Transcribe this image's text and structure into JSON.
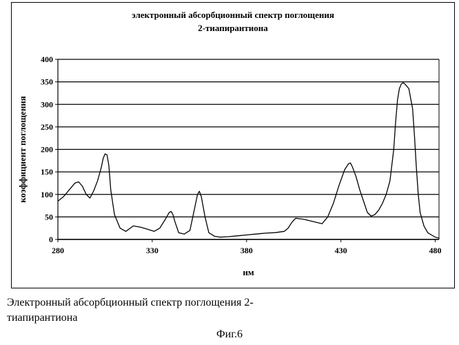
{
  "caption": {
    "line1": "Электронный   абсорбционный   спектр   поглощения   2-",
    "line2": "тиапирантиона",
    "figure_label": "Фиг.6"
  },
  "chart_data": {
    "type": "line",
    "title": [
      "электронный абсорбционный спектр поглощения",
      "2-тиапирантиона"
    ],
    "xlabel": "нм",
    "ylabel": "коэффициент поглощения",
    "xlim": [
      280,
      482
    ],
    "ylim": [
      0,
      400
    ],
    "xticks": [
      280,
      330,
      380,
      430,
      480
    ],
    "yticks": [
      0,
      50,
      100,
      150,
      200,
      250,
      300,
      350,
      400
    ],
    "grid": "horizontal",
    "legend": "none",
    "line_color": "#000000",
    "series": [
      {
        "x": [
          280,
          283,
          286,
          289,
          291,
          293,
          295,
          297,
          299,
          301,
          303,
          304,
          305,
          306,
          307,
          308,
          310,
          313,
          316,
          320,
          324,
          328,
          331,
          334,
          337,
          339,
          340,
          341,
          342,
          344,
          347,
          350,
          352,
          354,
          355,
          356,
          358,
          360,
          363,
          366,
          370,
          375,
          380,
          385,
          390,
          395,
          400,
          402,
          404,
          406,
          410,
          415,
          420,
          423,
          426,
          429,
          432,
          434,
          435,
          436,
          438,
          440,
          442,
          444,
          446,
          448,
          450,
          452,
          454,
          456,
          458,
          459,
          460,
          461,
          462,
          463,
          464,
          466,
          468,
          469,
          470,
          471,
          472,
          474,
          476,
          478,
          480,
          482
        ],
        "y": [
          85,
          95,
          110,
          125,
          128,
          118,
          100,
          92,
          108,
          130,
          160,
          180,
          190,
          188,
          165,
          110,
          55,
          25,
          18,
          30,
          27,
          22,
          18,
          25,
          45,
          60,
          62,
          55,
          40,
          15,
          12,
          20,
          60,
          100,
          107,
          95,
          50,
          15,
          7,
          5,
          6,
          8,
          10,
          12,
          14,
          15,
          18,
          25,
          38,
          47,
          45,
          40,
          35,
          50,
          80,
          120,
          155,
          168,
          170,
          162,
          140,
          110,
          85,
          60,
          52,
          55,
          65,
          80,
          100,
          130,
          200,
          260,
          310,
          335,
          345,
          348,
          345,
          335,
          290,
          230,
          160,
          100,
          60,
          30,
          15,
          10,
          5,
          3
        ]
      }
    ]
  }
}
